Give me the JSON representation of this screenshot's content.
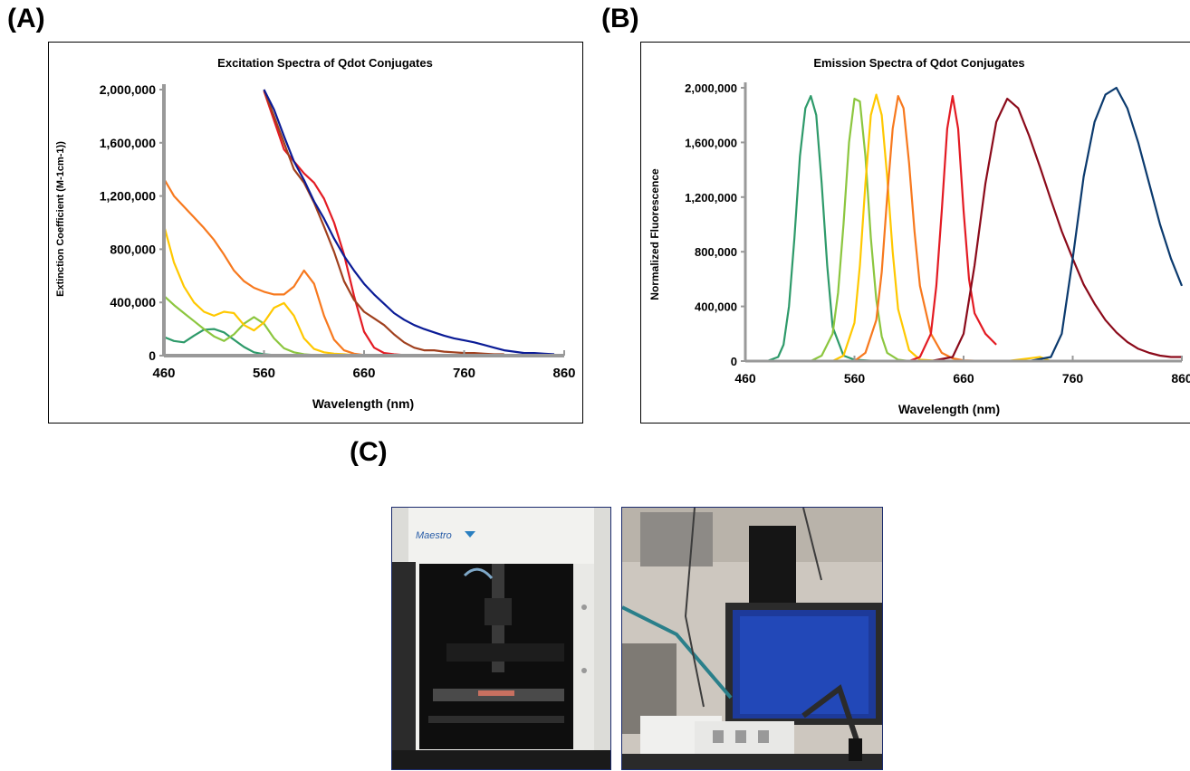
{
  "panels": {
    "a": "(A)",
    "b": "(B)",
    "c": "(C)"
  },
  "photos": {
    "logo_text": "Maestro"
  },
  "chart_data": [
    {
      "type": "line",
      "title": "Excitation Spectra of Qdot Conjugates",
      "xlabel": "Wavelength (nm)",
      "ylabel": "Extinction Coefficient (M-1cm-1))",
      "xlim": [
        460,
        860
      ],
      "ylim": [
        0,
        2000000
      ],
      "xticks": [
        460,
        560,
        660,
        760,
        860
      ],
      "xtick_labels": [
        "460",
        "560",
        "660",
        "760",
        "860"
      ],
      "yticks": [
        0,
        400000,
        800000,
        1200000,
        1600000,
        2000000
      ],
      "ytick_labels": [
        "0",
        "400,000",
        "800,000",
        "1,200,000",
        "1,600,000",
        "2,000,000"
      ],
      "grid": false,
      "legend": "none",
      "series": [
        {
          "color": "#2e9a6a",
          "x": [
            460,
            470,
            480,
            490,
            500,
            510,
            520,
            530,
            540,
            550,
            560,
            570,
            580,
            590,
            600,
            610,
            620
          ],
          "y": [
            140000,
            110000,
            100000,
            150000,
            195000,
            200000,
            175000,
            120000,
            65000,
            25000,
            10000,
            5000,
            2000,
            1000,
            0,
            0,
            0
          ]
        },
        {
          "color": "#8cc63f",
          "x": [
            460,
            470,
            480,
            490,
            500,
            510,
            520,
            530,
            540,
            550,
            560,
            570,
            580,
            590,
            600,
            610,
            620,
            630
          ],
          "y": [
            450000,
            380000,
            320000,
            260000,
            200000,
            145000,
            110000,
            160000,
            240000,
            290000,
            240000,
            130000,
            55000,
            25000,
            10000,
            5000,
            0,
            0
          ]
        },
        {
          "color": "#ffc800",
          "x": [
            460,
            470,
            480,
            490,
            500,
            510,
            520,
            530,
            540,
            550,
            560,
            570,
            580,
            590,
            600,
            610,
            620,
            630,
            640,
            650,
            660
          ],
          "y": [
            980000,
            700000,
            520000,
            400000,
            330000,
            300000,
            330000,
            320000,
            230000,
            190000,
            250000,
            360000,
            395000,
            300000,
            130000,
            50000,
            25000,
            15000,
            10000,
            5000,
            0
          ]
        },
        {
          "color": "#f7791e",
          "x": [
            460,
            470,
            480,
            490,
            500,
            510,
            520,
            530,
            540,
            550,
            560,
            570,
            580,
            590,
            600,
            610,
            620,
            630,
            640,
            650,
            660,
            670,
            680
          ],
          "y": [
            1330000,
            1200000,
            1120000,
            1040000,
            960000,
            870000,
            760000,
            640000,
            560000,
            510000,
            480000,
            460000,
            460000,
            520000,
            640000,
            540000,
            300000,
            120000,
            40000,
            15000,
            5000,
            0,
            0
          ]
        },
        {
          "color": "#e31b23",
          "x": [
            560,
            580,
            600,
            610,
            620,
            630,
            640,
            650,
            660,
            670,
            680,
            690,
            700
          ],
          "y": [
            1990000,
            1550000,
            1370000,
            1300000,
            1180000,
            1000000,
            760000,
            450000,
            180000,
            60000,
            20000,
            10000,
            5000
          ]
        },
        {
          "color": "#a0401e",
          "x": [
            560,
            570,
            580,
            590,
            600,
            610,
            620,
            630,
            640,
            650,
            660,
            670,
            680,
            690,
            700,
            710,
            720,
            730,
            740,
            750,
            760,
            770,
            780,
            790,
            800
          ],
          "y": [
            2000000,
            1800000,
            1600000,
            1400000,
            1300000,
            1150000,
            970000,
            780000,
            560000,
            420000,
            330000,
            280000,
            230000,
            160000,
            100000,
            60000,
            40000,
            40000,
            30000,
            25000,
            20000,
            20000,
            15000,
            10000,
            10000
          ]
        },
        {
          "color": "#0a1b96",
          "x": [
            560,
            570,
            580,
            590,
            600,
            610,
            620,
            630,
            640,
            650,
            660,
            670,
            680,
            690,
            700,
            710,
            720,
            730,
            740,
            750,
            760,
            770,
            780,
            790,
            800,
            810,
            820,
            830,
            840,
            850
          ],
          "y": [
            2000000,
            1850000,
            1650000,
            1460000,
            1320000,
            1160000,
            1030000,
            880000,
            750000,
            640000,
            540000,
            460000,
            390000,
            320000,
            270000,
            230000,
            200000,
            175000,
            150000,
            130000,
            115000,
            100000,
            80000,
            60000,
            40000,
            30000,
            20000,
            20000,
            15000,
            10000
          ]
        }
      ]
    },
    {
      "type": "line",
      "title": "Emission Spectra of Qdot Conjugates",
      "xlabel": "Wavelength (nm)",
      "ylabel": "Normalized Fluorescence",
      "xlim": [
        460,
        860
      ],
      "ylim": [
        0,
        2000000
      ],
      "xticks": [
        460,
        560,
        660,
        760,
        860
      ],
      "xtick_labels": [
        "460",
        "560",
        "660",
        "760",
        "860"
      ],
      "yticks": [
        0,
        400000,
        800000,
        1200000,
        1600000,
        2000000
      ],
      "ytick_labels": [
        "0",
        "400,000",
        "800,000",
        "1,200,000",
        "1,600,000",
        "2,000,000"
      ],
      "grid": false,
      "legend": "none",
      "series": [
        {
          "color": "#2e9a6a",
          "x": [
            460,
            480,
            490,
            495,
            500,
            505,
            510,
            515,
            520,
            525,
            530,
            535,
            540,
            550,
            560,
            580,
            620,
            700
          ],
          "y": [
            0,
            0,
            30000,
            120000,
            400000,
            900000,
            1500000,
            1850000,
            1940000,
            1800000,
            1300000,
            700000,
            250000,
            40000,
            10000,
            0,
            0,
            0
          ]
        },
        {
          "color": "#8cc63f",
          "x": [
            460,
            520,
            530,
            540,
            545,
            550,
            555,
            560,
            565,
            570,
            575,
            580,
            585,
            590,
            600,
            610,
            640
          ],
          "y": [
            0,
            0,
            40000,
            200000,
            500000,
            1000000,
            1600000,
            1920000,
            1900000,
            1500000,
            900000,
            450000,
            180000,
            60000,
            10000,
            0,
            0
          ]
        },
        {
          "color": "#ffc800",
          "x": [
            460,
            540,
            550,
            560,
            565,
            570,
            575,
            580,
            585,
            590,
            595,
            600,
            610,
            620,
            640,
            700,
            730,
            740
          ],
          "y": [
            0,
            0,
            40000,
            280000,
            700000,
            1300000,
            1800000,
            1950000,
            1800000,
            1350000,
            800000,
            380000,
            80000,
            10000,
            0,
            0,
            30000,
            0
          ]
        },
        {
          "color": "#f7791e",
          "x": [
            460,
            560,
            570,
            580,
            585,
            590,
            595,
            600,
            605,
            610,
            615,
            620,
            630,
            640,
            650,
            660,
            680
          ],
          "y": [
            0,
            0,
            60000,
            300000,
            650000,
            1200000,
            1700000,
            1940000,
            1850000,
            1450000,
            950000,
            550000,
            200000,
            60000,
            20000,
            5000,
            0
          ]
        },
        {
          "color": "#e31b23",
          "x": [
            460,
            610,
            620,
            630,
            635,
            640,
            645,
            650,
            655,
            660,
            665,
            670,
            680,
            690
          ],
          "y": [
            0,
            0,
            30000,
            200000,
            550000,
            1100000,
            1700000,
            1940000,
            1700000,
            1100000,
            600000,
            350000,
            200000,
            120000
          ]
        },
        {
          "color": "#8b0a1a",
          "x": [
            460,
            630,
            650,
            660,
            670,
            680,
            690,
            700,
            710,
            720,
            730,
            740,
            750,
            760,
            770,
            780,
            790,
            800,
            810,
            820,
            830,
            840,
            850,
            860
          ],
          "y": [
            0,
            0,
            30000,
            200000,
            700000,
            1300000,
            1750000,
            1920000,
            1850000,
            1650000,
            1420000,
            1180000,
            950000,
            750000,
            560000,
            420000,
            300000,
            210000,
            140000,
            90000,
            60000,
            40000,
            30000,
            30000
          ]
        },
        {
          "color": "#0b3a6e",
          "x": [
            460,
            720,
            740,
            750,
            760,
            770,
            780,
            790,
            800,
            810,
            820,
            830,
            840,
            850,
            860
          ],
          "y": [
            0,
            0,
            30000,
            200000,
            750000,
            1350000,
            1750000,
            1950000,
            2000000,
            1850000,
            1600000,
            1300000,
            1000000,
            750000,
            550000
          ]
        }
      ]
    }
  ]
}
